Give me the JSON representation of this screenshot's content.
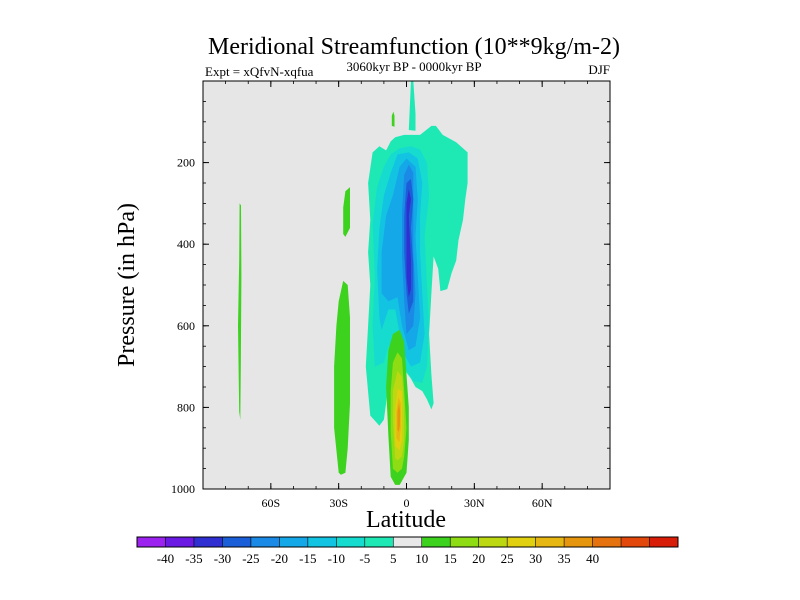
{
  "chart_data": {
    "type": "contour",
    "title": "Meridional Streamfunction (10**9kg/m-2)",
    "subtitle": "3060kyr BP - 0000kyr BP",
    "left_label": "Expt = xQfvN-xqfua",
    "right_label": "DJF",
    "xlabel": "Latitude",
    "ylabel": "Pressure (in hPa)",
    "xlim": [
      -90,
      90
    ],
    "ylim": [
      1000,
      0
    ],
    "x_ticks": [
      {
        "value": -60,
        "label": "60S"
      },
      {
        "value": -30,
        "label": "30S"
      },
      {
        "value": 0,
        "label": "0"
      },
      {
        "value": 30,
        "label": "30N"
      },
      {
        "value": 60,
        "label": "60N"
      }
    ],
    "y_ticks": [
      {
        "value": 200,
        "label": "200"
      },
      {
        "value": 400,
        "label": "400"
      },
      {
        "value": 600,
        "label": "600"
      },
      {
        "value": 800,
        "label": "800"
      },
      {
        "value": 1000,
        "label": "1000"
      }
    ],
    "background_color": "#e6e6e6",
    "colorbar": {
      "colors": [
        "#9b22ef",
        "#6b1ae4",
        "#2f2fd2",
        "#1b5fd8",
        "#1a8ae6",
        "#14a8e8",
        "#12c4e2",
        "#16dcd0",
        "#1ee8b4",
        "#e8e8e8",
        "#3cd21e",
        "#8edc14",
        "#bcd812",
        "#e0d010",
        "#e6b612",
        "#e6960e",
        "#e4720e",
        "#e2480c",
        "#d81e08"
      ],
      "labels": [
        "-40",
        "-35",
        "-30",
        "-25",
        "-20",
        "-15",
        "-10",
        "-5",
        "5",
        "10",
        "15",
        "20",
        "25",
        "30",
        "35",
        "40"
      ]
    },
    "contour_regions": [
      {
        "level": -5,
        "color": "#1ee8b4",
        "points": [
          [
            -16,
            820
          ],
          [
            -18,
            700
          ],
          [
            -17,
            600
          ],
          [
            -16,
            500
          ],
          [
            -17,
            420
          ],
          [
            -16,
            340
          ],
          [
            -17,
            250
          ],
          [
            -15,
            175
          ],
          [
            -12,
            160
          ],
          [
            -9,
            170
          ],
          [
            -7,
            148
          ],
          [
            -5,
            138
          ],
          [
            -1,
            132
          ],
          [
            6,
            132
          ],
          [
            11,
            110
          ],
          [
            13,
            110
          ],
          [
            16,
            132
          ],
          [
            22,
            150
          ],
          [
            27,
            175
          ],
          [
            27,
            250
          ],
          [
            26,
            290
          ],
          [
            25,
            340
          ],
          [
            23,
            390
          ],
          [
            22,
            440
          ],
          [
            20,
            470
          ],
          [
            18,
            510
          ],
          [
            15,
            515
          ],
          [
            14,
            460
          ],
          [
            12,
            430
          ],
          [
            11,
            520
          ],
          [
            10,
            620
          ],
          [
            11,
            720
          ],
          [
            12,
            790
          ],
          [
            11,
            805
          ],
          [
            9,
            780
          ],
          [
            7,
            760
          ],
          [
            4,
            750
          ],
          [
            2,
            730
          ],
          [
            -2,
            700
          ],
          [
            -4,
            680
          ],
          [
            -6,
            690
          ],
          [
            -8,
            720
          ],
          [
            -9,
            790
          ],
          [
            -10,
            830
          ],
          [
            -12,
            845
          ]
        ]
      },
      {
        "level": -10,
        "color": "#16dcd0",
        "points": [
          [
            -14,
            700
          ],
          [
            -15,
            600
          ],
          [
            -14,
            480
          ],
          [
            -15,
            350
          ],
          [
            -13,
            260
          ],
          [
            -10,
            210
          ],
          [
            -7,
            180
          ],
          [
            -3,
            165
          ],
          [
            2,
            160
          ],
          [
            6,
            168
          ],
          [
            9,
            200
          ],
          [
            10,
            280
          ],
          [
            8,
            380
          ],
          [
            9,
            500
          ],
          [
            10,
            600
          ],
          [
            9,
            700
          ],
          [
            7,
            740
          ],
          [
            3,
            735
          ],
          [
            -1,
            700
          ],
          [
            -4,
            650
          ],
          [
            -8,
            650
          ],
          [
            -10,
            690
          ]
        ]
      },
      {
        "level": -15,
        "color": "#12c4e2",
        "points": [
          [
            -12,
            580
          ],
          [
            -13,
            460
          ],
          [
            -12,
            360
          ],
          [
            -10,
            280
          ],
          [
            -7,
            225
          ],
          [
            -4,
            180
          ],
          [
            1,
            175
          ],
          [
            5,
            190
          ],
          [
            7,
            250
          ],
          [
            6,
            330
          ],
          [
            6,
            420
          ],
          [
            7,
            520
          ],
          [
            8,
            620
          ],
          [
            6,
            690
          ],
          [
            2,
            700
          ],
          [
            -1,
            670
          ],
          [
            -3,
            620
          ],
          [
            -5,
            560
          ],
          [
            -8,
            560
          ],
          [
            -11,
            610
          ]
        ]
      },
      {
        "level": -20,
        "color": "#14a8e8",
        "points": [
          [
            -11,
            520
          ],
          [
            -11,
            420
          ],
          [
            -9,
            330
          ],
          [
            -6,
            280
          ],
          [
            -3,
            210
          ],
          [
            0,
            190
          ],
          [
            4,
            210
          ],
          [
            5,
            290
          ],
          [
            4,
            380
          ],
          [
            5,
            480
          ],
          [
            6,
            580
          ],
          [
            4,
            650
          ],
          [
            1,
            660
          ],
          [
            -2,
            600
          ],
          [
            -4,
            530
          ],
          [
            -8,
            540
          ]
        ]
      },
      {
        "level": -25,
        "color": "#1a8ae6",
        "points": [
          [
            -2,
            430
          ],
          [
            -2,
            320
          ],
          [
            -1,
            230
          ],
          [
            1,
            205
          ],
          [
            3,
            225
          ],
          [
            3,
            320
          ],
          [
            3,
            420
          ],
          [
            4,
            520
          ],
          [
            3,
            600
          ],
          [
            0,
            620
          ],
          [
            -1,
            540
          ]
        ]
      },
      {
        "level": -30,
        "color": "#1b5fd8",
        "points": [
          [
            -1,
            330
          ],
          [
            0,
            250
          ],
          [
            2,
            240
          ],
          [
            3,
            290
          ],
          [
            2,
            360
          ],
          [
            3,
            450
          ],
          [
            3,
            540
          ],
          [
            1,
            570
          ],
          [
            0,
            520
          ],
          [
            -1,
            420
          ]
        ]
      },
      {
        "level": -35,
        "color": "#2f2fd2",
        "points": [
          [
            0,
            300
          ],
          [
            1,
            265
          ],
          [
            2,
            290
          ],
          [
            1,
            330
          ],
          [
            2,
            440
          ],
          [
            2,
            510
          ],
          [
            1,
            530
          ],
          [
            0,
            480
          ],
          [
            0,
            400
          ]
        ]
      },
      {
        "level": -5,
        "color": "#1ee8b4",
        "points": [
          [
            1,
            120
          ],
          [
            2,
            0
          ],
          [
            3,
            0
          ],
          [
            4,
            80
          ],
          [
            4,
            122
          ]
        ]
      },
      {
        "level": 5,
        "color": "#3cd21e",
        "points": [
          [
            -74,
            810
          ],
          [
            -74.5,
            600
          ],
          [
            -74,
            440
          ],
          [
            -73.8,
            300
          ],
          [
            -73.2,
            305
          ],
          [
            -73,
            480
          ],
          [
            -73.3,
            700
          ],
          [
            -73.5,
            830
          ]
        ]
      },
      {
        "level": 5,
        "color": "#3cd21e",
        "points": [
          [
            -30,
            960
          ],
          [
            -32,
            850
          ],
          [
            -32,
            700
          ],
          [
            -31,
            600
          ],
          [
            -30,
            540
          ],
          [
            -28,
            490
          ],
          [
            -26,
            500
          ],
          [
            -25,
            580
          ],
          [
            -25,
            680
          ],
          [
            -25,
            790
          ],
          [
            -26,
            900
          ],
          [
            -27,
            960
          ],
          [
            -29,
            965
          ]
        ]
      },
      {
        "level": 5,
        "color": "#3cd21e",
        "points": [
          [
            -28,
            375
          ],
          [
            -28,
            310
          ],
          [
            -27,
            270
          ],
          [
            -25,
            260
          ],
          [
            -25,
            300
          ],
          [
            -25,
            360
          ],
          [
            -27,
            382
          ]
        ]
      },
      {
        "level": 5,
        "color": "#3cd21e",
        "points": [
          [
            -6.5,
            110
          ],
          [
            -6.5,
            85
          ],
          [
            -5.8,
            75
          ],
          [
            -5.3,
            85
          ],
          [
            -5.3,
            112
          ]
        ]
      },
      {
        "level": 5,
        "color": "#3cd21e",
        "points": [
          [
            -7,
            970
          ],
          [
            -8,
            870
          ],
          [
            -9,
            750
          ],
          [
            -8,
            660
          ],
          [
            -6,
            620
          ],
          [
            -3,
            610
          ],
          [
            -1,
            640
          ],
          [
            0,
            720
          ],
          [
            1,
            800
          ],
          [
            1,
            880
          ],
          [
            0,
            960
          ],
          [
            -3,
            990
          ],
          [
            -5,
            990
          ]
        ]
      },
      {
        "level": 10,
        "color": "#8edc14",
        "points": [
          [
            -6,
            950
          ],
          [
            -7,
            860
          ],
          [
            -7,
            760
          ],
          [
            -6,
            690
          ],
          [
            -4,
            665
          ],
          [
            -2,
            680
          ],
          [
            -1,
            760
          ],
          [
            0,
            850
          ],
          [
            -1,
            920
          ],
          [
            -2,
            950
          ],
          [
            -4,
            960
          ]
        ]
      },
      {
        "level": 15,
        "color": "#bcd812",
        "points": [
          [
            -5,
            925
          ],
          [
            -6,
            830
          ],
          [
            -6,
            760
          ],
          [
            -4,
            710
          ],
          [
            -2,
            725
          ],
          [
            -1,
            800
          ],
          [
            -1,
            880
          ],
          [
            -2,
            920
          ],
          [
            -4,
            930
          ]
        ]
      },
      {
        "level": 20,
        "color": "#e0d010",
        "points": [
          [
            -5,
            895
          ],
          [
            -5,
            810
          ],
          [
            -4,
            755
          ],
          [
            -2,
            760
          ],
          [
            -2,
            830
          ],
          [
            -2,
            880
          ],
          [
            -3,
            905
          ]
        ]
      },
      {
        "level": 25,
        "color": "#e6b612",
        "points": [
          [
            -4.5,
            875
          ],
          [
            -4.5,
            810
          ],
          [
            -3.5,
            775
          ],
          [
            -2.5,
            790
          ],
          [
            -2.5,
            850
          ],
          [
            -3.2,
            885
          ]
        ]
      },
      {
        "level": 30,
        "color": "#e6960e",
        "points": [
          [
            -4,
            855
          ],
          [
            -4,
            810
          ],
          [
            -3.3,
            790
          ],
          [
            -2.8,
            810
          ],
          [
            -2.9,
            845
          ],
          [
            -3.4,
            860
          ]
        ]
      }
    ]
  }
}
